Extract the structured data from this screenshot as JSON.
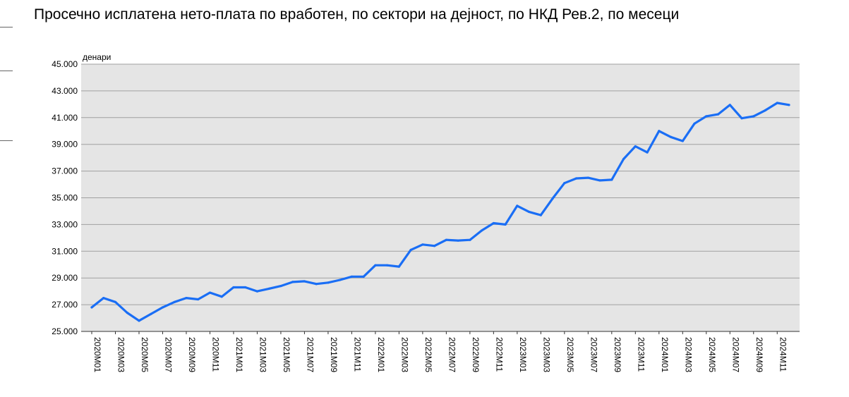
{
  "chart_data": {
    "type": "line",
    "title": "Просечно исплатена нето-плата по вработен, по сектори на дејност, по НКД Рев.2, по месеци",
    "ylabel": "денари",
    "xlabel": "",
    "ylim": [
      25000,
      45000
    ],
    "y_ticks": [
      25000,
      27000,
      29000,
      31000,
      33000,
      35000,
      37000,
      39000,
      41000,
      43000,
      45000
    ],
    "y_tick_labels": [
      "25.000",
      "27.000",
      "29.000",
      "31.000",
      "33.000",
      "35.000",
      "37.000",
      "39.000",
      "41.000",
      "43.000",
      "45.000"
    ],
    "x_tick_labels": [
      "2020M01",
      "2020M03",
      "2020M05",
      "2020M07",
      "2020M09",
      "2020M11",
      "2021M01",
      "2021M03",
      "2021M05",
      "2021M07",
      "2021M09",
      "2021M11",
      "2022M01",
      "2022M03",
      "2022M05",
      "2022M07",
      "2022M09",
      "2022M11",
      "2023M01",
      "2023M03",
      "2023M05",
      "2023M07",
      "2023M09",
      "2023M11",
      "2024M01",
      "2024M03",
      "2024M05",
      "2024M07",
      "2024M09",
      "2024M11"
    ],
    "grid": true,
    "legend": "none",
    "colors": {
      "line": "#1a6ef5",
      "plot_bg": "#e5e5e5",
      "grid": "#a0a0a0"
    },
    "series": [
      {
        "values": [
          26800,
          27500,
          27200,
          26400,
          25800,
          26300,
          26800,
          27200,
          27500,
          27400,
          27900,
          27600,
          28300,
          28300,
          28000,
          28200,
          28400,
          28700,
          28750,
          28550,
          28650,
          28850,
          29100,
          29100,
          29950,
          29950,
          29850,
          31100,
          31500,
          31400,
          31850,
          31800,
          31850,
          32550,
          33100,
          33000,
          34400,
          33950,
          33700,
          34950,
          36100,
          36450,
          36500,
          36300,
          36350,
          37900,
          38850,
          38400,
          40000,
          39550,
          39250,
          40550,
          41100,
          41250,
          41950,
          40950,
          41100,
          41550,
          42100,
          41950
        ]
      }
    ]
  }
}
